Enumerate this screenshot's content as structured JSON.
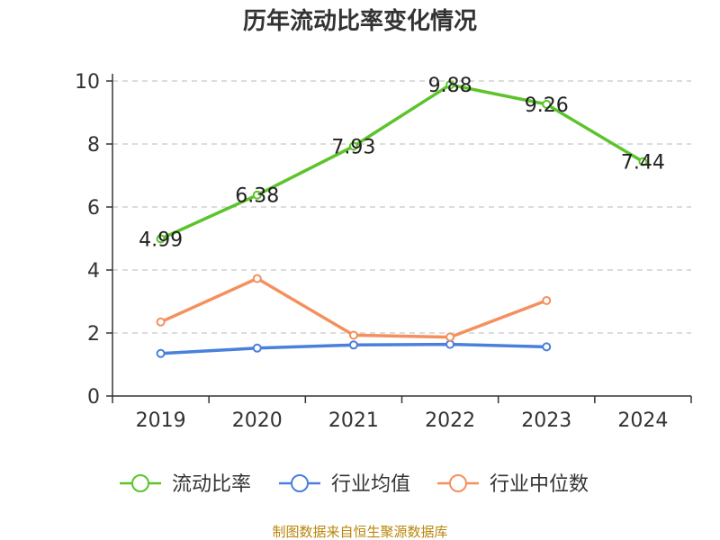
{
  "chart_data": {
    "type": "line",
    "title": "历年流动比率变化情况",
    "categories": [
      "2019",
      "2020",
      "2021",
      "2022",
      "2023",
      "2024"
    ],
    "ylim": [
      0,
      10
    ],
    "yticks": [
      0,
      2,
      4,
      6,
      8,
      10
    ],
    "grid": true,
    "legend_position": "bottom",
    "series": [
      {
        "name": "流动比率",
        "color": "#5cc42a",
        "values": [
          4.99,
          6.38,
          7.93,
          9.88,
          9.26,
          7.44
        ],
        "labels": [
          "4.99",
          "6.38",
          "7.93",
          "9.88",
          "9.26",
          "7.44"
        ]
      },
      {
        "name": "行业均值",
        "color": "#4a7fdc",
        "values": [
          1.35,
          1.52,
          1.62,
          1.64,
          1.56,
          null
        ]
      },
      {
        "name": "行业中位数",
        "color": "#f4905e",
        "values": [
          2.35,
          3.73,
          1.93,
          1.87,
          3.03,
          null
        ]
      }
    ],
    "source": "制图数据来自恒生聚源数据库"
  }
}
